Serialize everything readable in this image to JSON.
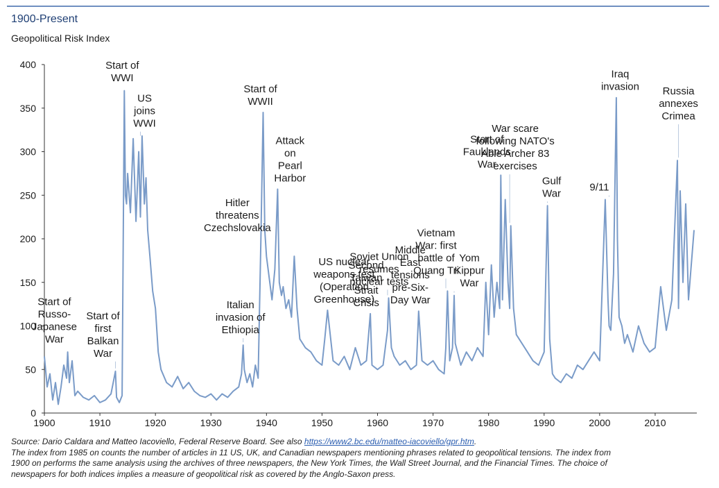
{
  "header": {
    "title": "1900-Present",
    "subtitle": "Geopolitical Risk Index"
  },
  "colors": {
    "series": "#7a9bc8",
    "accent_rule": "#6f8fc0",
    "title": "#1f3f74"
  },
  "chart_data": {
    "type": "line",
    "title": "1900-Present",
    "subtitle": "Geopolitical Risk Index",
    "xlabel": "",
    "ylabel": "",
    "xlim": [
      1900,
      2017.5
    ],
    "ylim": [
      0,
      400
    ],
    "xticks": [
      1900,
      1910,
      1920,
      1930,
      1940,
      1950,
      1960,
      1970,
      1980,
      1990,
      2000,
      2010
    ],
    "yticks": [
      0,
      50,
      100,
      150,
      200,
      250,
      300,
      350,
      400
    ],
    "grid": false,
    "legend": "none",
    "series": [
      {
        "x": [
          1900,
          1900.5,
          1901,
          1901.5,
          1902,
          1902.5,
          1903,
          1903.5,
          1904,
          1904.2,
          1904.5,
          1905,
          1905.5,
          1906,
          1907,
          1908,
          1909,
          1910,
          1911,
          1912,
          1912.8,
          1913,
          1913.5,
          1914,
          1914.4,
          1914.6,
          1914.8,
          1915,
          1915.5,
          1916,
          1916.5,
          1917,
          1917.3,
          1917.6,
          1918,
          1918.3,
          1918.6,
          1919,
          1919.5,
          1920,
          1920.5,
          1921,
          1922,
          1923,
          1924,
          1925,
          1926,
          1927,
          1928,
          1929,
          1930,
          1931,
          1932,
          1933,
          1934,
          1935,
          1935.5,
          1935.8,
          1936,
          1936.5,
          1937,
          1937.5,
          1938,
          1938.5,
          1939,
          1939.4,
          1939.7,
          1940,
          1940.5,
          1941,
          1941.5,
          1942,
          1942.3,
          1942.7,
          1943,
          1943.5,
          1944,
          1944.5,
          1945,
          1945.5,
          1946,
          1947,
          1948,
          1949,
          1950,
          1950.5,
          1951,
          1952,
          1953,
          1954,
          1955,
          1956,
          1957,
          1958,
          1958.7,
          1959,
          1960,
          1961,
          1961.8,
          1962,
          1962.5,
          1963,
          1964,
          1965,
          1966,
          1967,
          1967.4,
          1968,
          1969,
          1970,
          1971,
          1972,
          1972.3,
          1972.6,
          1973,
          1973.5,
          1973.8,
          1974,
          1975,
          1976,
          1977,
          1978,
          1979,
          1979.5,
          1980,
          1980.5,
          1981,
          1981.5,
          1982,
          1982.2,
          1982.5,
          1983,
          1983.5,
          1983.8,
          1984,
          1984.5,
          1985,
          1986,
          1987,
          1988,
          1989,
          1990,
          1990.6,
          1991,
          1991.5,
          1992,
          1993,
          1994,
          1995,
          1996,
          1997,
          1998,
          1999,
          2000,
          2001,
          2001.5,
          2001.7,
          2002,
          2002.5,
          2003,
          2003.2,
          2003.5,
          2004,
          2004.5,
          2005,
          2006,
          2007,
          2008,
          2009,
          2010,
          2011,
          2012,
          2013,
          2014,
          2014.2,
          2014.5,
          2015,
          2015.5,
          2016,
          2016.5,
          2017
        ],
        "y": [
          65,
          30,
          45,
          15,
          35,
          10,
          30,
          55,
          40,
          70,
          35,
          60,
          20,
          25,
          18,
          15,
          20,
          12,
          15,
          22,
          48,
          18,
          12,
          20,
          370,
          250,
          240,
          275,
          230,
          315,
          220,
          300,
          225,
          318,
          240,
          270,
          210,
          180,
          140,
          120,
          70,
          50,
          35,
          30,
          42,
          28,
          35,
          25,
          20,
          18,
          22,
          15,
          22,
          18,
          25,
          30,
          45,
          78,
          50,
          35,
          45,
          30,
          55,
          40,
          200,
          345,
          210,
          180,
          155,
          130,
          165,
          257,
          150,
          135,
          145,
          120,
          130,
          110,
          180,
          120,
          85,
          75,
          70,
          60,
          55,
          85,
          118,
          60,
          55,
          65,
          50,
          75,
          55,
          60,
          114,
          55,
          50,
          55,
          95,
          132,
          75,
          65,
          55,
          60,
          50,
          55,
          117,
          60,
          55,
          60,
          50,
          45,
          75,
          140,
          60,
          75,
          135,
          80,
          55,
          70,
          60,
          75,
          65,
          150,
          90,
          170,
          110,
          150,
          120,
          273,
          130,
          245,
          150,
          120,
          215,
          120,
          90,
          80,
          70,
          60,
          55,
          70,
          238,
          85,
          45,
          40,
          35,
          45,
          40,
          55,
          50,
          60,
          70,
          60,
          245,
          130,
          100,
          95,
          160,
          362,
          200,
          110,
          100,
          80,
          90,
          70,
          100,
          80,
          70,
          75,
          145,
          95,
          130,
          290,
          120,
          255,
          150,
          240,
          130,
          170,
          210
        ]
      }
    ],
    "annotations": [
      {
        "label": [
          "Start of",
          "Russo-",
          "Japanese",
          "War"
        ],
        "x": 1904.3,
        "y": 72
      },
      {
        "label": [
          "Start of",
          "first",
          "Balkan",
          "War"
        ],
        "x": 1912.8,
        "y": 48
      },
      {
        "label": [
          "Start of",
          "WWI"
        ],
        "x": 1914.4,
        "y": 372
      },
      {
        "label": [
          "US",
          "joins",
          "WWI"
        ],
        "x": 1917.3,
        "y": 315
      },
      {
        "label": [
          "Italian",
          "invasion of",
          "Ethiopia"
        ],
        "x": 1935.8,
        "y": 78
      },
      {
        "label": [
          "Hitler",
          "threatens",
          "Czechslovakia"
        ],
        "x": 1938.5,
        "y": 200
      },
      {
        "label": [
          "Start of",
          "WWII"
        ],
        "x": 1939.4,
        "y": 345
      },
      {
        "label": [
          "Attack",
          "on",
          "Pearl",
          "Harbor"
        ],
        "x": 1942,
        "y": 257
      },
      {
        "label": [
          "US nuclear",
          "weapons test",
          "(Operation",
          "Greenhouse)"
        ],
        "x": 1951,
        "y": 118
      },
      {
        "label": [
          "Second",
          "Taiwan",
          "Strait",
          "Crisis"
        ],
        "x": 1958.7,
        "y": 114
      },
      {
        "label": [
          "Soviet Union",
          "resumes",
          "nuclear tests"
        ],
        "x": 1961.8,
        "y": 132
      },
      {
        "label": [
          "Middle",
          "East",
          "tensions",
          "pre-Six-",
          "Day War"
        ],
        "x": 1967.4,
        "y": 117
      },
      {
        "label": [
          "Vietnam",
          "War: first",
          "battle of",
          "Quang Tri"
        ],
        "x": 1972.3,
        "y": 140
      },
      {
        "label": [
          "Yom",
          "Kippur",
          "War"
        ],
        "x": 1973.8,
        "y": 135
      },
      {
        "label": [
          "Start of",
          "Fauklands",
          "War"
        ],
        "x": 1982.2,
        "y": 273
      },
      {
        "label": [
          "War scare",
          "following NATO's",
          "Able Archer 83",
          "exercises"
        ],
        "x": 1983.8,
        "y": 215
      },
      {
        "label": [
          "Gulf",
          "War"
        ],
        "x": 1990.6,
        "y": 238
      },
      {
        "label": [
          "9/11"
        ],
        "x": 2001.7,
        "y": 245
      },
      {
        "label": [
          "Iraq",
          "invasion"
        ],
        "x": 2003.2,
        "y": 362
      },
      {
        "label": [
          "Russia",
          "annexes",
          "Crimea"
        ],
        "x": 2014.2,
        "y": 290
      }
    ]
  },
  "footer": {
    "source_prefix": "Source: Dario Caldara and Matteo Iacoviello, Federal Reserve Board. See also ",
    "source_link": "https://www2.bc.edu/matteo-iacoviello/gpr.htm",
    "source_suffix": ".",
    "note_line_1": "The index from 1985 on counts the number of articles in 11 US, UK, and Canadian newspapers mentioning phrases related to geopolitical tensions. The index from",
    "note_line_2": "1900 on performs the same analysis using the archives of three newspapers, the New York Times, the Wall Street Journal, and the Financial Times. The choice of",
    "note_line_3": "newspapers for both indices implies a measure of geopolitical risk as covered by the Anglo-Saxon press."
  }
}
